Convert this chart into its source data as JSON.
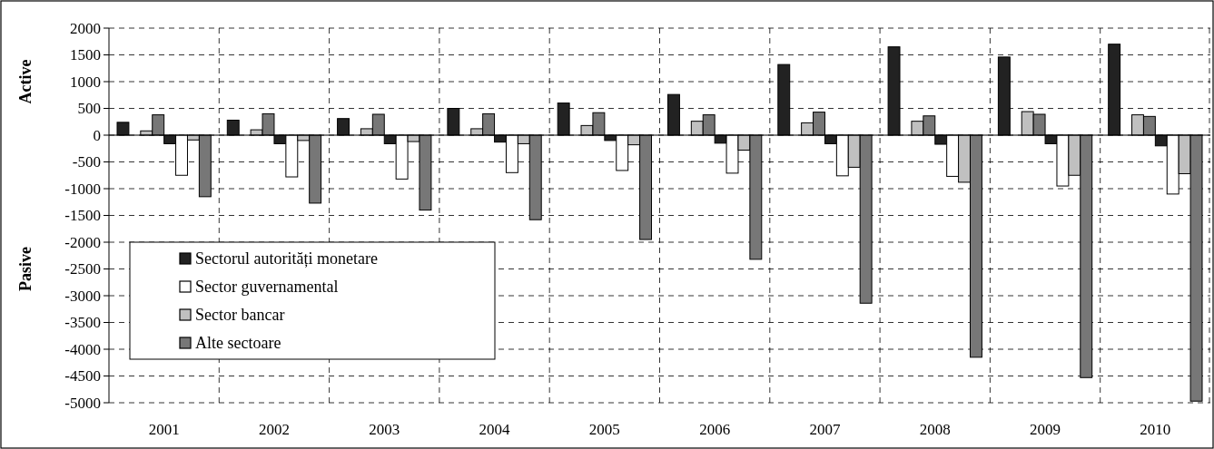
{
  "chart_data": {
    "type": "bar",
    "categories": [
      "2001",
      "2002",
      "2003",
      "2004",
      "2005",
      "2006",
      "2007",
      "2008",
      "2009",
      "2010"
    ],
    "series": [
      {
        "name": "Sectorul autorități monetare",
        "color": "#222222",
        "values": [
          240,
          280,
          310,
          500,
          600,
          760,
          1320,
          1650,
          1460,
          1700
        ]
      },
      {
        "name": "Sector guvernamental",
        "color": "#ffffff",
        "values": [
          0,
          0,
          0,
          0,
          0,
          0,
          0,
          0,
          0,
          0
        ]
      },
      {
        "name": "Sector bancar",
        "color": "#c0c0c0",
        "values": [
          80,
          100,
          120,
          120,
          180,
          260,
          230,
          260,
          440,
          380
        ]
      },
      {
        "name": "Alte sectoare",
        "color": "#777777",
        "values": [
          380,
          400,
          390,
          400,
          420,
          380,
          430,
          360,
          390,
          350
        ]
      },
      {
        "color": "#222222",
        "values": [
          -160,
          -160,
          -160,
          -130,
          -100,
          -150,
          -160,
          -170,
          -160,
          -200
        ]
      },
      {
        "color": "#ffffff",
        "values": [
          -750,
          -780,
          -820,
          -700,
          -660,
          -710,
          -760,
          -770,
          -950,
          -1100
        ]
      },
      {
        "color": "#c0c0c0",
        "values": [
          -90,
          -100,
          -120,
          -160,
          -180,
          -280,
          -600,
          -880,
          -750,
          -720
        ]
      },
      {
        "color": "#777777",
        "values": [
          -1150,
          -1270,
          -1400,
          -1580,
          -1950,
          -2320,
          -3140,
          -4150,
          -4530,
          -4970
        ]
      }
    ],
    "ylim": [
      -5000,
      2000
    ],
    "yticks": [
      -5000,
      -4500,
      -4000,
      -3500,
      -3000,
      -2500,
      -2000,
      -1500,
      -1000,
      -500,
      0,
      500,
      1000,
      1500,
      2000
    ],
    "annotations": [
      "Active",
      "Pasive"
    ],
    "grid": true,
    "legend": "left"
  }
}
